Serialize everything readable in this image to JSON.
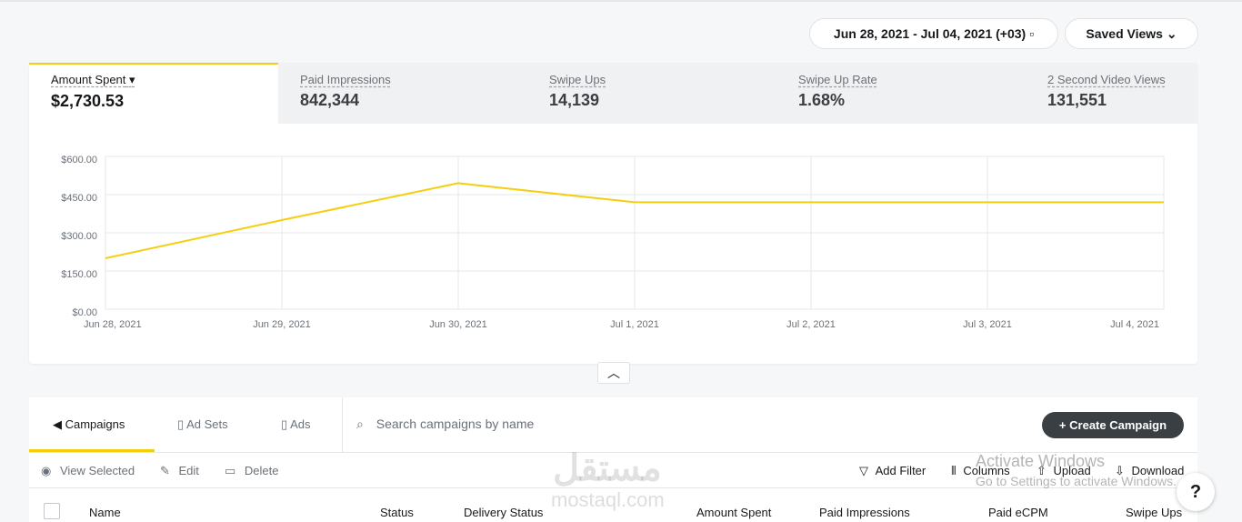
{
  "header": {
    "date_range": "Jun 28, 2021 - Jul 04, 2021 (+03)",
    "saved_views": "Saved Views"
  },
  "metrics": [
    {
      "label": "Amount Spent",
      "value": "$2,730.53"
    },
    {
      "label": "Paid Impressions",
      "value": "842,344"
    },
    {
      "label": "Swipe Ups",
      "value": "14,139"
    },
    {
      "label": "Swipe Up Rate",
      "value": "1.68%"
    },
    {
      "label": "2 Second Video Views",
      "value": "131,551"
    }
  ],
  "chart_data": {
    "type": "line",
    "categories": [
      "Jun 28, 2021",
      "Jun 29, 2021",
      "Jun 30, 2021",
      "Jul 1, 2021",
      "Jul 2, 2021",
      "Jul 3, 2021",
      "Jul 4, 2021"
    ],
    "values": [
      200,
      350,
      495,
      420,
      420,
      420,
      420
    ],
    "color": "#f5cf0f",
    "ylim": [
      0,
      600
    ],
    "yticks": [
      {
        "value": 0,
        "label": "$0.00"
      },
      {
        "value": 150,
        "label": "$150.00"
      },
      {
        "value": 300,
        "label": "$300.00"
      },
      {
        "value": 450,
        "label": "$450.00"
      },
      {
        "value": 600,
        "label": "$600.00"
      }
    ],
    "grid": true
  },
  "table": {
    "tabs": [
      "Campaigns",
      "Ad Sets",
      "Ads"
    ],
    "search_placeholder": "Search campaigns by name",
    "create_button": "Create Campaign",
    "actions": [
      "View Selected",
      "Edit",
      "Delete"
    ],
    "tools": [
      "Add Filter",
      "Columns",
      "Upload",
      "Download"
    ],
    "columns": [
      "Name",
      "Status",
      "Delivery Status",
      "Amount Spent",
      "Paid Impressions",
      "Paid eCPM",
      "Swipe Ups"
    ]
  },
  "overlays": {
    "watermark_arabic": "مستقل",
    "watermark_url": "mostaql.com",
    "activate_title": "Activate Windows",
    "activate_text": "Go to Settings to activate Windows."
  }
}
